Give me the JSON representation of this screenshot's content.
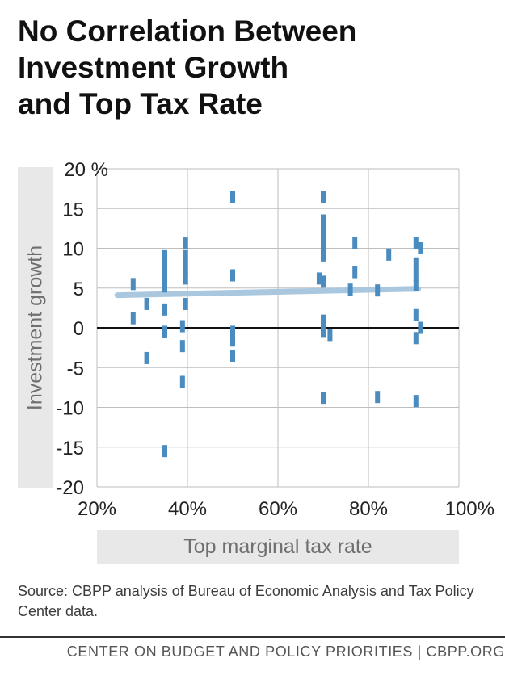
{
  "title_lines": [
    "No Correlation Between",
    "Investment Growth",
    "and Top Tax Rate"
  ],
  "source": "Source: CBPP analysis of Bureau of Economic Analysis and Tax Policy Center data.",
  "footer": "CENTER ON BUDGET AND POLICY PRIORITIES | CBPP.ORG",
  "colors": {
    "points": "#4a8cbf",
    "trend": "#a9c8e0",
    "grid": "#bdbdbd",
    "zero_line": "#111111"
  },
  "chart_data": {
    "type": "scatter",
    "title": "No Correlation Between Investment Growth and Top Tax Rate",
    "xlabel": "Top marginal tax rate",
    "ylabel": "Investment growth",
    "xlim": [
      20,
      100
    ],
    "ylim": [
      -20,
      20
    ],
    "x_ticks": [
      20,
      40,
      60,
      80,
      100
    ],
    "x_tick_labels": [
      "20%",
      "40%",
      "60%",
      "80%",
      "100%"
    ],
    "y_ticks": [
      -20,
      -15,
      -10,
      -5,
      0,
      5,
      10,
      15,
      20
    ],
    "y_tick_labels": [
      "-20",
      "-15",
      "-10",
      "-5",
      "0",
      "5",
      "10",
      "15",
      "20 %"
    ],
    "grid": true,
    "points": [
      {
        "x": 28,
        "y": 5.5
      },
      {
        "x": 28,
        "y": 1.2
      },
      {
        "x": 31,
        "y": 3.0
      },
      {
        "x": 31,
        "y": -3.8
      },
      {
        "x": 35,
        "y": 9.0
      },
      {
        "x": 35,
        "y": 7.7
      },
      {
        "x": 35,
        "y": 6.5
      },
      {
        "x": 35,
        "y": 5.2
      },
      {
        "x": 35,
        "y": 2.3
      },
      {
        "x": 35,
        "y": -0.5
      },
      {
        "x": 35,
        "y": -15.5
      },
      {
        "x": 38.9,
        "y": 0.2
      },
      {
        "x": 38.9,
        "y": -2.3
      },
      {
        "x": 38.9,
        "y": -6.8
      },
      {
        "x": 39.6,
        "y": 10.6
      },
      {
        "x": 39.6,
        "y": 9.0
      },
      {
        "x": 39.6,
        "y": 7.5
      },
      {
        "x": 39.6,
        "y": 6.2
      },
      {
        "x": 39.6,
        "y": 3.0
      },
      {
        "x": 50,
        "y": 16.5
      },
      {
        "x": 50,
        "y": 6.6
      },
      {
        "x": 50,
        "y": -0.5
      },
      {
        "x": 50,
        "y": -1.6
      },
      {
        "x": 50,
        "y": -3.5
      },
      {
        "x": 69.1,
        "y": 6.2
      },
      {
        "x": 70,
        "y": 16.5
      },
      {
        "x": 70,
        "y": 13.5
      },
      {
        "x": 70,
        "y": 12.0
      },
      {
        "x": 70,
        "y": 10.6
      },
      {
        "x": 70,
        "y": 9.1
      },
      {
        "x": 70,
        "y": 5.8
      },
      {
        "x": 70,
        "y": 0.9
      },
      {
        "x": 70,
        "y": -0.4
      },
      {
        "x": 70,
        "y": -8.8
      },
      {
        "x": 71.5,
        "y": -0.9
      },
      {
        "x": 76,
        "y": 4.8
      },
      {
        "x": 77,
        "y": 10.7
      },
      {
        "x": 77,
        "y": 7.0
      },
      {
        "x": 82,
        "y": 4.7
      },
      {
        "x": 82,
        "y": -8.7
      },
      {
        "x": 84.5,
        "y": 9.2
      },
      {
        "x": 90.5,
        "y": 10.7
      },
      {
        "x": 90.5,
        "y": 8.1
      },
      {
        "x": 90.5,
        "y": 6.6
      },
      {
        "x": 90.5,
        "y": 5.4
      },
      {
        "x": 90.5,
        "y": 1.6
      },
      {
        "x": 90.5,
        "y": -1.3
      },
      {
        "x": 90.5,
        "y": -9.2
      },
      {
        "x": 91.5,
        "y": 10.0
      },
      {
        "x": 91.5,
        "y": 0.0
      }
    ],
    "trendline": {
      "x": [
        24.5,
        91
      ],
      "y": [
        4.1,
        4.9
      ]
    }
  }
}
